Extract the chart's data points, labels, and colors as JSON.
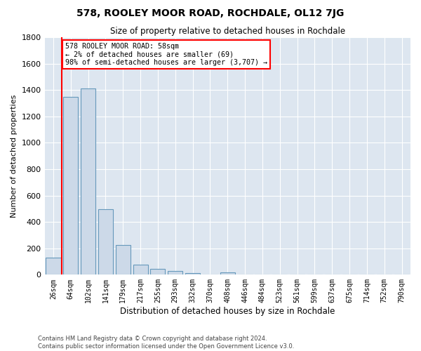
{
  "title": "578, ROOLEY MOOR ROAD, ROCHDALE, OL12 7JG",
  "subtitle": "Size of property relative to detached houses in Rochdale",
  "xlabel": "Distribution of detached houses by size in Rochdale",
  "ylabel": "Number of detached properties",
  "bar_color": "#ccd9e8",
  "bar_edge_color": "#6699bb",
  "background_color": "#dde6f0",
  "grid_color": "#ffffff",
  "categories": [
    "26sqm",
    "64sqm",
    "102sqm",
    "141sqm",
    "179sqm",
    "217sqm",
    "255sqm",
    "293sqm",
    "332sqm",
    "370sqm",
    "408sqm",
    "446sqm",
    "484sqm",
    "523sqm",
    "561sqm",
    "599sqm",
    "637sqm",
    "675sqm",
    "714sqm",
    "752sqm",
    "790sqm"
  ],
  "values": [
    130,
    1350,
    1410,
    495,
    225,
    75,
    45,
    28,
    15,
    0,
    18,
    0,
    0,
    0,
    0,
    0,
    0,
    0,
    0,
    0,
    0
  ],
  "ylim": [
    0,
    1800
  ],
  "yticks": [
    0,
    200,
    400,
    600,
    800,
    1000,
    1200,
    1400,
    1600,
    1800
  ],
  "annotation_box_text": "578 ROOLEY MOOR ROAD: 58sqm\n← 2% of detached houses are smaller (69)\n98% of semi-detached houses are larger (3,707) →",
  "annotation_box_color": "white",
  "annotation_box_edge_color": "red",
  "vline_color": "red",
  "vline_x_index": 1,
  "footer_line1": "Contains HM Land Registry data © Crown copyright and database right 2024.",
  "footer_line2": "Contains public sector information licensed under the Open Government Licence v3.0."
}
